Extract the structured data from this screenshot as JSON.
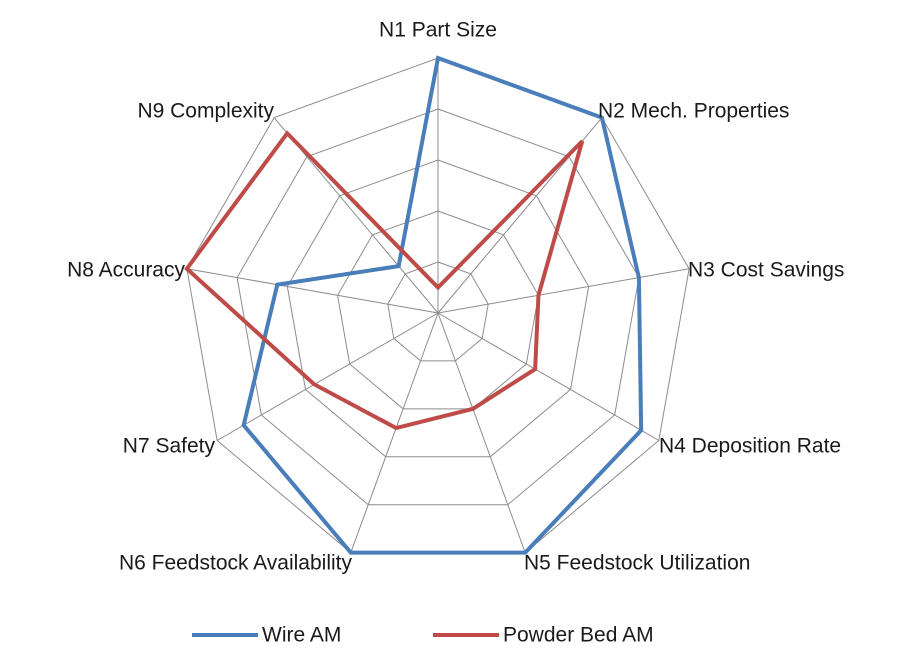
{
  "chart_data": {
    "type": "radar",
    "title": "",
    "axes": [
      "N1 Part Size",
      "N2 Mech. Properties",
      "N3 Cost Savings",
      "N4 Deposition Rate",
      "N5 Feedstock Utilization",
      "N6 Feedstock Availability",
      "N7 Safety",
      "N8 Accuracy",
      "N9 Complexity"
    ],
    "range": [
      0,
      5
    ],
    "rings": 5,
    "series": [
      {
        "name": "Wire AM",
        "color": "#4a7ebb",
        "values": [
          5,
          5,
          4,
          4.6,
          5,
          5,
          4.4,
          3.2,
          1.2
        ]
      },
      {
        "name": "Powder Bed AM",
        "color": "#be4b48",
        "values": [
          0.5,
          4.4,
          2,
          2.2,
          2,
          2.4,
          2.8,
          5,
          4.6
        ]
      }
    ],
    "legend_position": "bottom"
  }
}
